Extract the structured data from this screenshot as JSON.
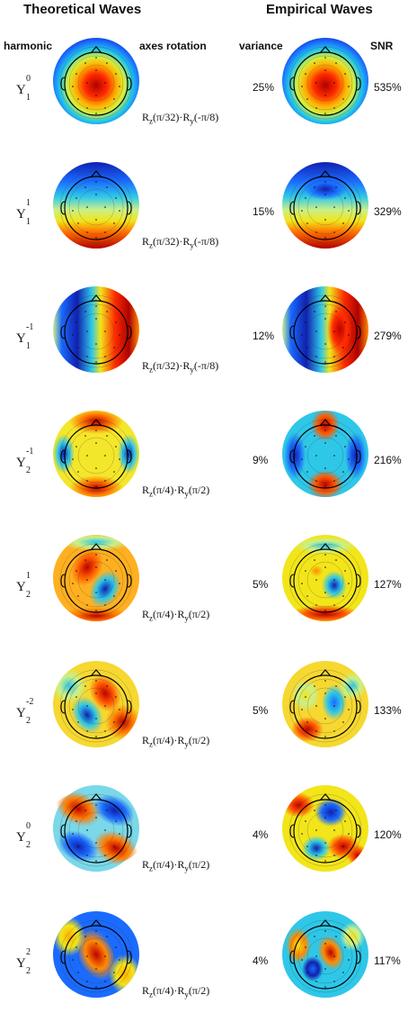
{
  "headers": {
    "theoretical": "Theoretical Waves",
    "empirical": "Empirical Waves",
    "harmonic": "harmonic",
    "axes_rotation": "axes rotation",
    "variance": "variance",
    "snr": "SNR"
  },
  "rows": [
    {
      "harmonic": {
        "base": "Y",
        "sup": "0",
        "sub": "1"
      },
      "rotation": {
        "rz": "(π/32)",
        "ry": "(-π/8)"
      },
      "variance": "25%",
      "snr": "535%"
    },
    {
      "harmonic": {
        "base": "Y",
        "sup": "1",
        "sub": "1"
      },
      "rotation": {
        "rz": "(π/32)",
        "ry": "(-π/8)"
      },
      "variance": "15%",
      "snr": "329%"
    },
    {
      "harmonic": {
        "base": "Y",
        "sup": "-1",
        "sub": "1"
      },
      "rotation": {
        "rz": "(π/32)",
        "ry": "(-π/8)"
      },
      "variance": "12%",
      "snr": "279%"
    },
    {
      "harmonic": {
        "base": "Y",
        "sup": "-1",
        "sub": "2"
      },
      "rotation": {
        "rz": "(π/4)",
        "ry": "(π/2)"
      },
      "variance": "9%",
      "snr": "216%"
    },
    {
      "harmonic": {
        "base": "Y",
        "sup": "1",
        "sub": "2"
      },
      "rotation": {
        "rz": "(π/4)",
        "ry": "(π/2)"
      },
      "variance": "5%",
      "snr": "127%"
    },
    {
      "harmonic": {
        "base": "Y",
        "sup": "-2",
        "sub": "2"
      },
      "rotation": {
        "rz": "(π/4)",
        "ry": "(π/2)"
      },
      "variance": "5%",
      "snr": "133%"
    },
    {
      "harmonic": {
        "base": "Y",
        "sup": "0",
        "sub": "2"
      },
      "rotation": {
        "rz": "(π/4)",
        "ry": "(π/2)"
      },
      "variance": "4%",
      "snr": "120%"
    },
    {
      "harmonic": {
        "base": "Y",
        "sup": "2",
        "sub": "2"
      },
      "rotation": {
        "rz": "(π/4)",
        "ry": "(π/2)"
      },
      "variance": "4%",
      "snr": "117%"
    }
  ],
  "rotation_symbols": {
    "r": "R",
    "z": "z",
    "y": "y",
    "dot": "·"
  },
  "colormap": "jet",
  "colors": {
    "red": "#d7191c",
    "blue": "#1f3fd6",
    "cyan": "#2ec7e8",
    "yellow": "#f2e51a"
  }
}
